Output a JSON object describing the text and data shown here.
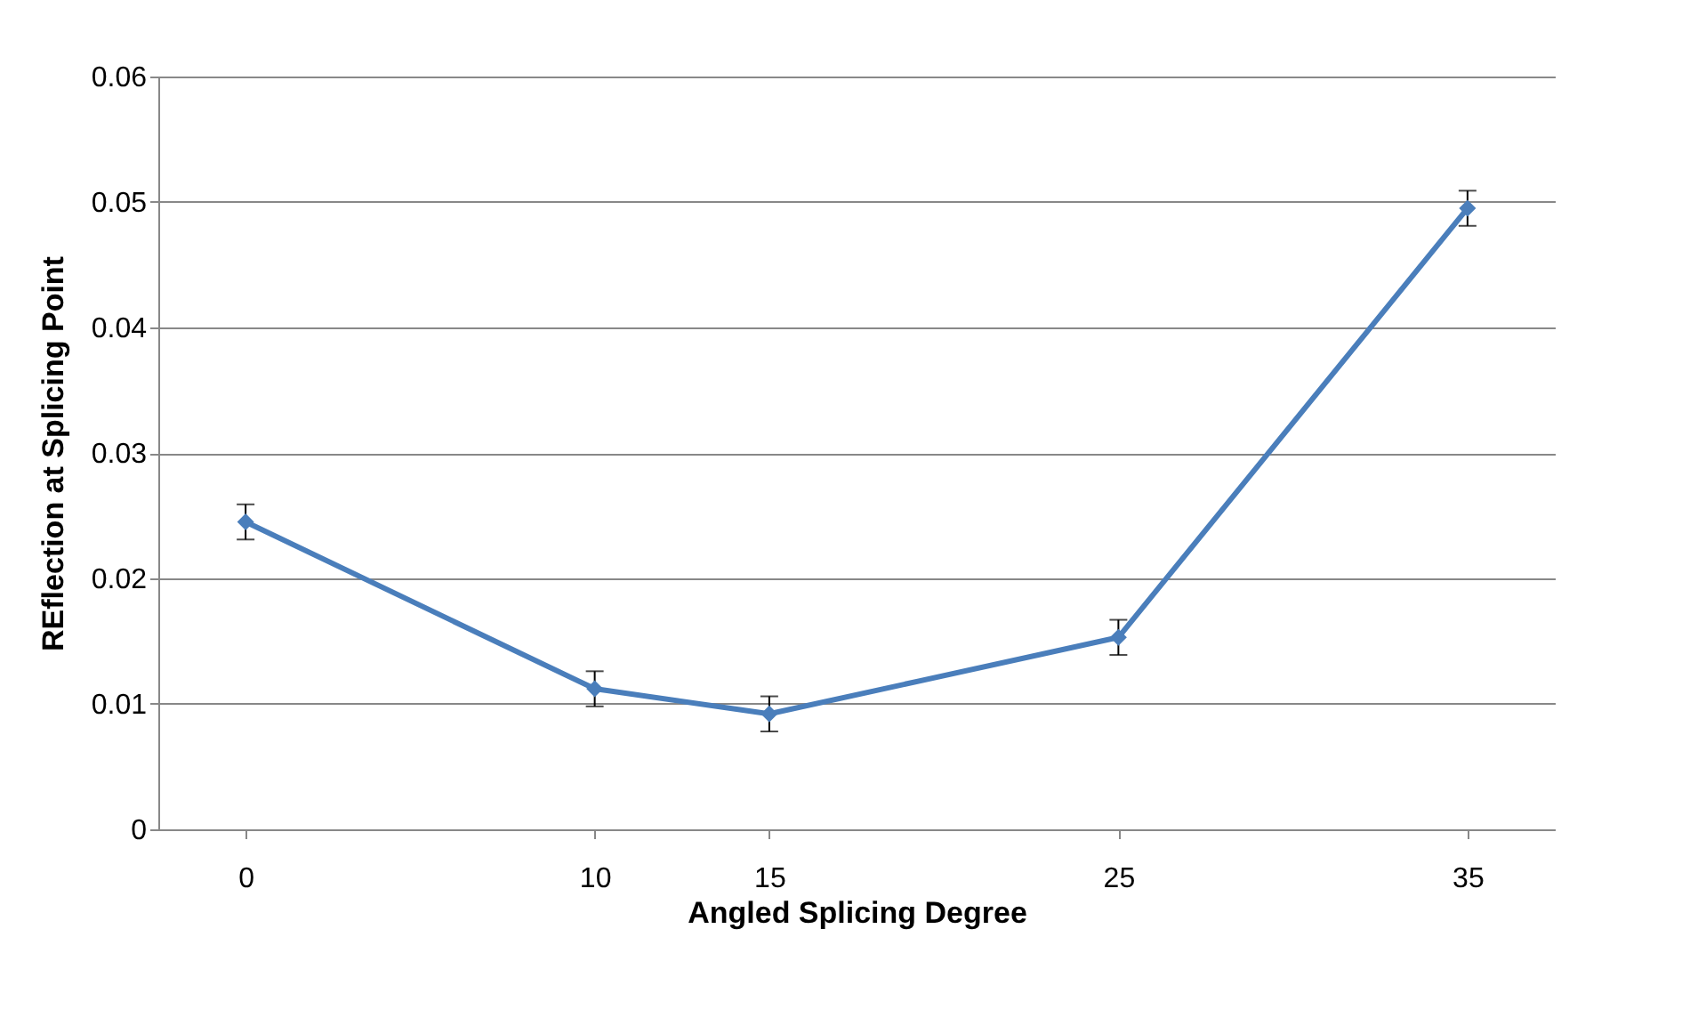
{
  "chart_data": {
    "type": "line",
    "xlabel": "Angled Splicing Degree",
    "ylabel": "REflection at Splicing Point",
    "x": [
      0,
      10,
      15,
      25,
      35
    ],
    "series": [
      {
        "color": "#4a7ebb",
        "values": [
          0.0245,
          0.0112,
          0.0092,
          0.0153,
          0.0495
        ],
        "errors": [
          0.0014,
          0.0014,
          0.0014,
          0.0014,
          0.0014
        ]
      }
    ],
    "xlim": [
      -2.5,
      37.5
    ],
    "xticks": [
      0,
      10,
      15,
      25,
      35
    ],
    "ylim": [
      0,
      0.06
    ],
    "yticks": [
      0,
      0.01,
      0.02,
      0.03,
      0.04,
      0.05,
      0.06
    ],
    "grid": "y",
    "marker": "diamond",
    "line_style": "solid"
  }
}
